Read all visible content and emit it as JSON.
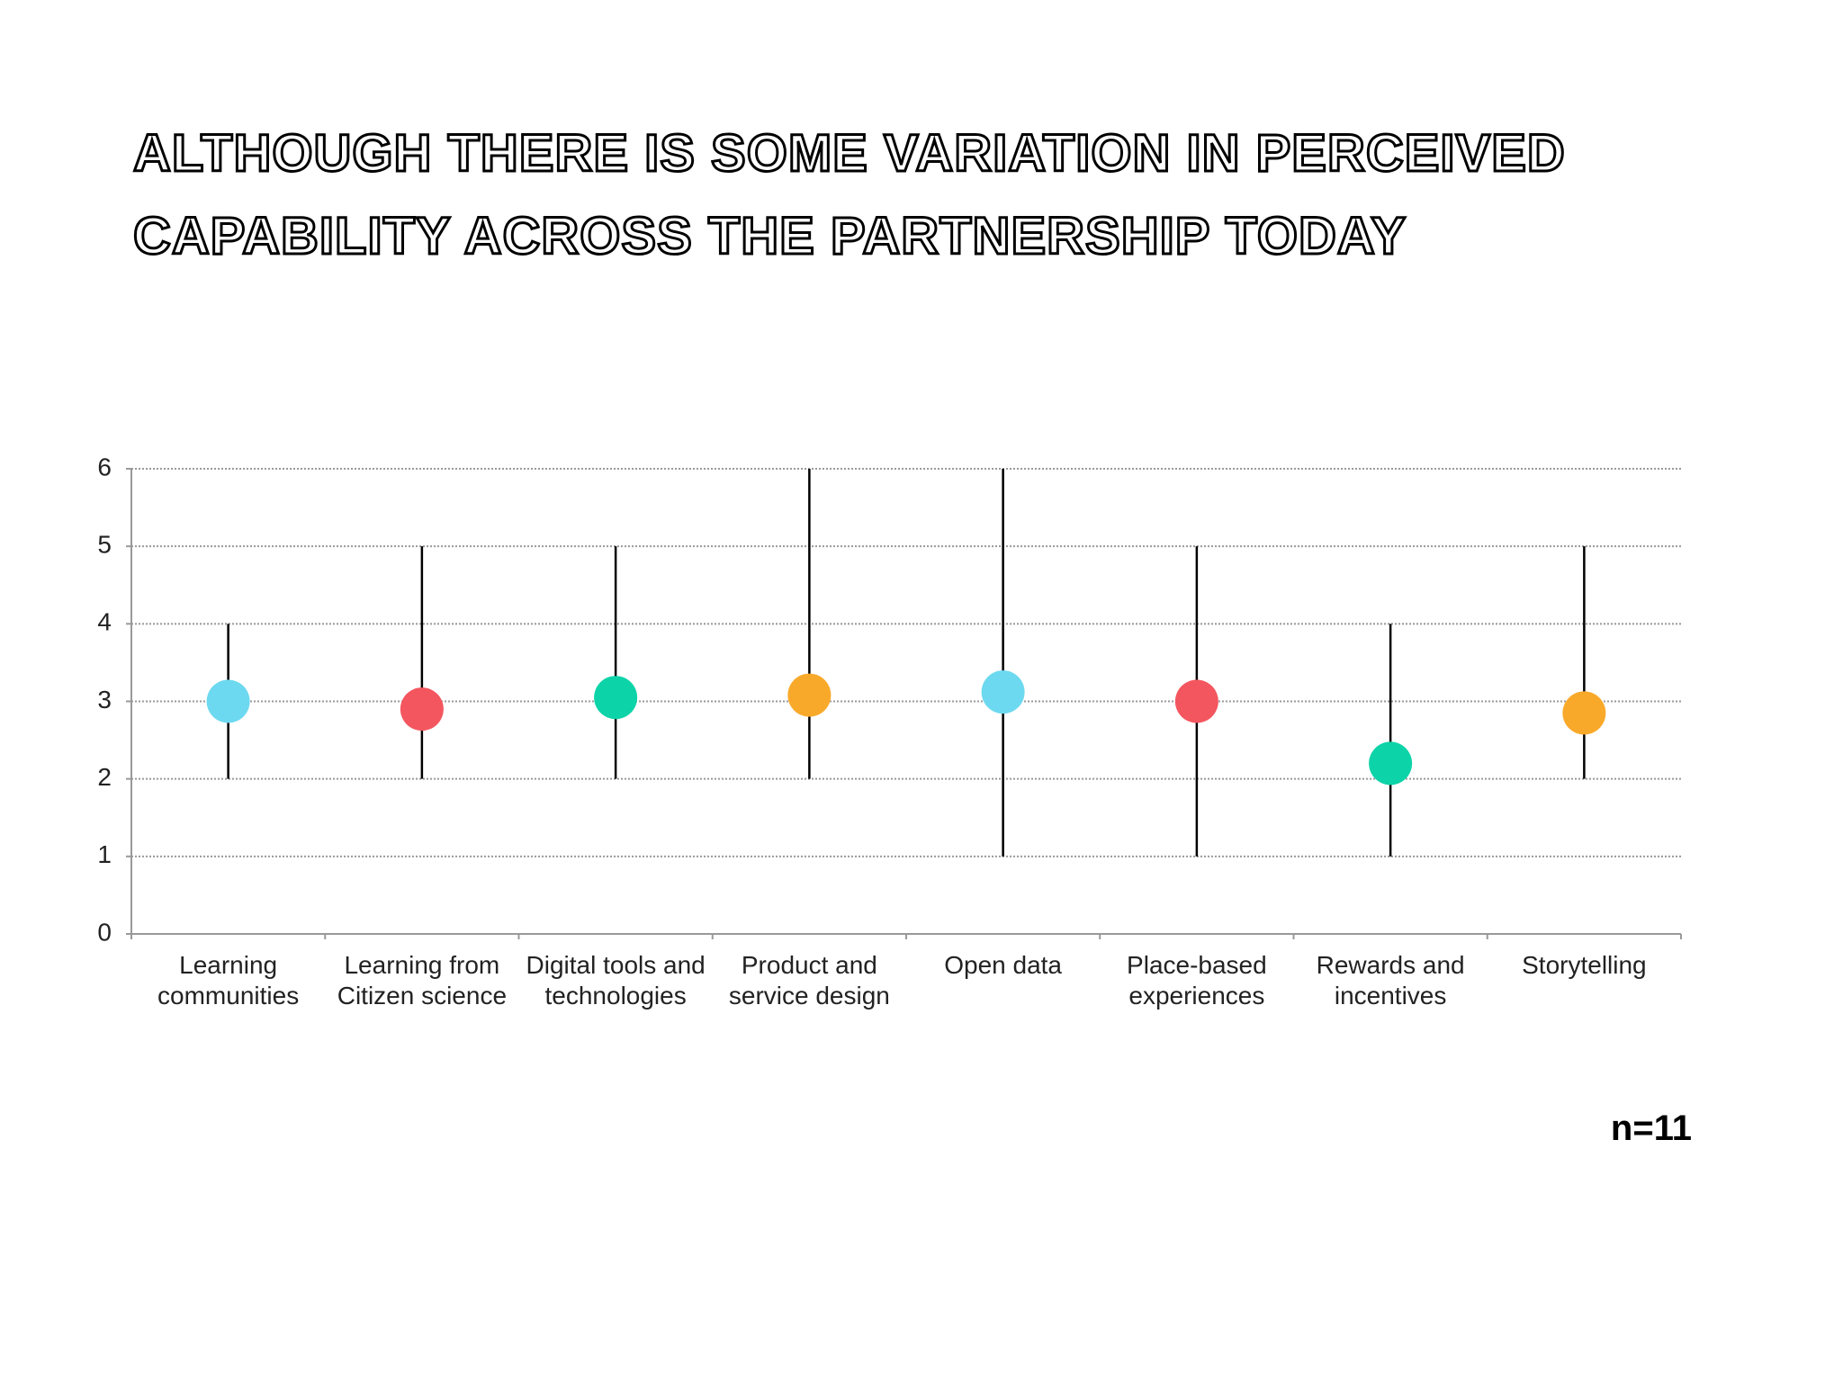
{
  "chart_data": {
    "type": "range",
    "title": "ALTHOUGH THERE IS SOME VARIATION IN PERCEIVED CAPABILITY ACROSS THE PARTNERSHIP TODAY",
    "note": "n=11",
    "categories": [
      "Learning communities",
      "Learning from Citizen science",
      "Digital tools and technologies",
      "Product and service design",
      "Open data",
      "Place-based experiences",
      "Rewards and incentives",
      "Storytelling"
    ],
    "values": [
      3.0,
      2.9,
      3.05,
      3.08,
      3.12,
      3.0,
      2.2,
      2.85
    ],
    "low": [
      2,
      2,
      2,
      2,
      1,
      1,
      1,
      2
    ],
    "high": [
      4,
      5,
      5,
      6,
      6,
      5,
      4,
      5
    ],
    "colors": [
      "#6dd9f0",
      "#f4565f",
      "#0dd3a8",
      "#f9a92a",
      "#6dd9f0",
      "#f4565f",
      "#0dd3a8",
      "#f9a92a"
    ],
    "ylim": [
      0,
      6
    ],
    "yticks": [
      0,
      1,
      2,
      3,
      4,
      5,
      6
    ],
    "grid": true
  }
}
